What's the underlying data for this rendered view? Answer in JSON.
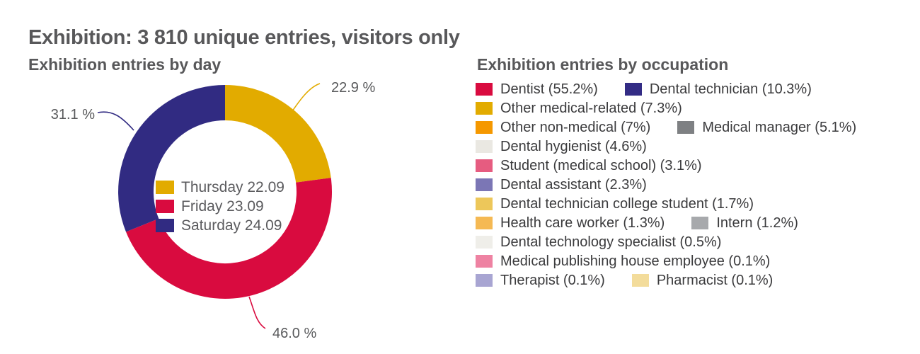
{
  "header": {
    "title": "Exhibition: 3 810 unique entries, visitors only"
  },
  "chart_data": [
    {
      "type": "pie",
      "variant": "donut",
      "title": "Exhibition entries by day",
      "categories": [
        "Thursday 22.09",
        "Friday 23.09",
        "Saturday 24.09"
      ],
      "values": [
        22.9,
        46.0,
        31.1
      ],
      "value_labels": [
        "22.9 %",
        "46.0 %",
        "31.1 %"
      ],
      "colors": [
        "#e2ab00",
        "#d90b3f",
        "#312b82"
      ],
      "start_angle_deg": 0,
      "direction": "clockwise",
      "legend_position": "center"
    },
    {
      "type": "pie",
      "legend_only": true,
      "title": "Exhibition entries by occupation",
      "categories": [
        "Dentist",
        "Dental technician",
        "Other medical-related",
        "Other non-medical",
        "Medical manager",
        "Dental hygienist",
        "Student (medical school)",
        "Dental assistant",
        "Dental technician college student",
        "Health care worker",
        "Intern",
        "Dental technology specialist",
        "Medical publishing house employee",
        "Therapist",
        "Pharmacist"
      ],
      "values": [
        55.2,
        10.3,
        7.3,
        7,
        5.1,
        4.6,
        3.1,
        2.3,
        1.7,
        1.3,
        1.2,
        0.5,
        0.1,
        0.1,
        0.1
      ],
      "value_labels": [
        "55.2%",
        "10.3%",
        "7.3%",
        "7%",
        "5.1%",
        "4.6%",
        "3.1%",
        "2.3%",
        "1.7%",
        "1.3%",
        "1.2%",
        "0.5%",
        "0.1%",
        "0.1%",
        "0.1%"
      ],
      "colors": [
        "#d90b3f",
        "#332c85",
        "#e2ab00",
        "#f59800",
        "#7e8083",
        "#eae8e2",
        "#e65c80",
        "#7b76b5",
        "#edc75a",
        "#f5b953",
        "#a7a9ac",
        "#efeee9",
        "#ee82a2",
        "#a8a5d2",
        "#f3dc9b"
      ],
      "legend_rows": [
        [
          0,
          1
        ],
        [
          2
        ],
        [
          3,
          4
        ],
        [
          5
        ],
        [
          6
        ],
        [
          7
        ],
        [
          8
        ],
        [
          9,
          10
        ],
        [
          11
        ],
        [
          12
        ],
        [
          13,
          14
        ]
      ],
      "legend_position": "right"
    }
  ]
}
